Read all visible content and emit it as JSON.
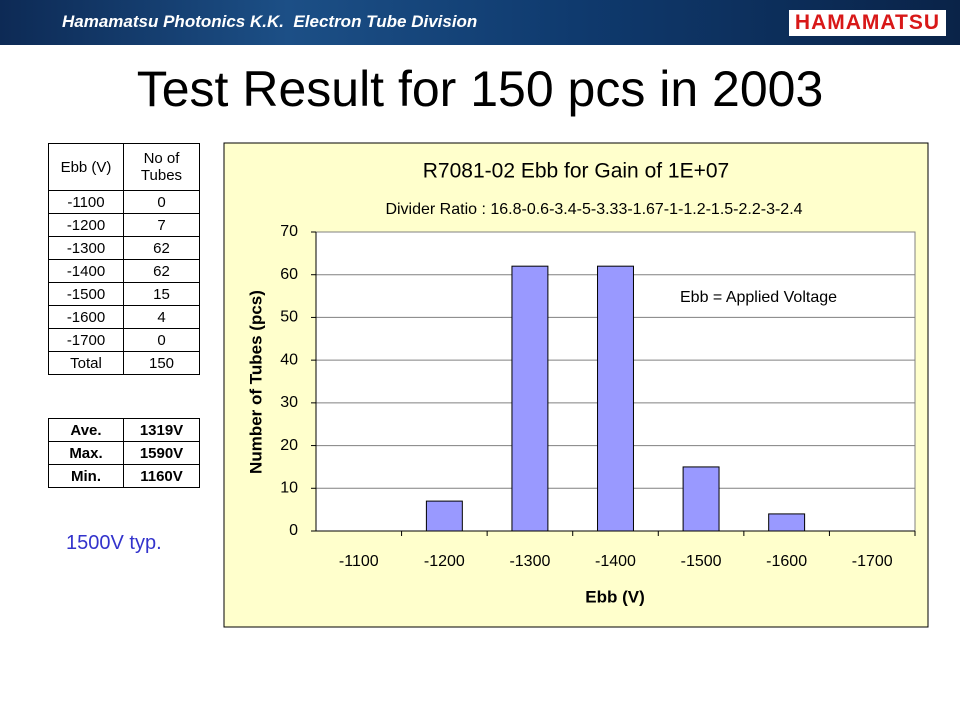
{
  "header": {
    "division": "Hamamatsu Photonics K.K.  Electron Tube Division",
    "logo": "HAMAMATSU"
  },
  "title": "Test Result for 150 pcs in 2003",
  "table": {
    "columns": [
      "Ebb (V)",
      "No of Tubes"
    ],
    "rows": [
      [
        "-1100",
        0
      ],
      [
        "-1200",
        7
      ],
      [
        "-1300",
        62
      ],
      [
        "-1400",
        62
      ],
      [
        "-1500",
        15
      ],
      [
        "-1600",
        4
      ],
      [
        "-1700",
        0
      ],
      [
        "Total",
        150
      ]
    ]
  },
  "stats": {
    "rows": [
      [
        "Ave.",
        "1319V"
      ],
      [
        "Max.",
        "1590V"
      ],
      [
        "Min.",
        "1160V"
      ]
    ]
  },
  "note": "1500V typ.",
  "chart_data": {
    "type": "bar",
    "title": "R7081-02 Ebb for Gain of 1E+07",
    "subtitle": "Divider Ratio : 16.8-0.6-3.4-5-3.33-1.67-1-1.2-1.5-2.2-3-2.4",
    "annotation": "Ebb = Applied Voltage",
    "x_label": "Ebb (V)",
    "y_label": "Number of Tubes (pcs)",
    "categories": [
      "-1100",
      "-1200",
      "-1300",
      "-1400",
      "-1500",
      "-1600",
      "-1700"
    ],
    "values": [
      0,
      7,
      62,
      62,
      15,
      4,
      0
    ],
    "color": "#9999ff",
    "ylim": [
      0,
      70
    ],
    "yticks": [
      0,
      10,
      20,
      30,
      40,
      50,
      60,
      70
    ],
    "grid": true
  }
}
